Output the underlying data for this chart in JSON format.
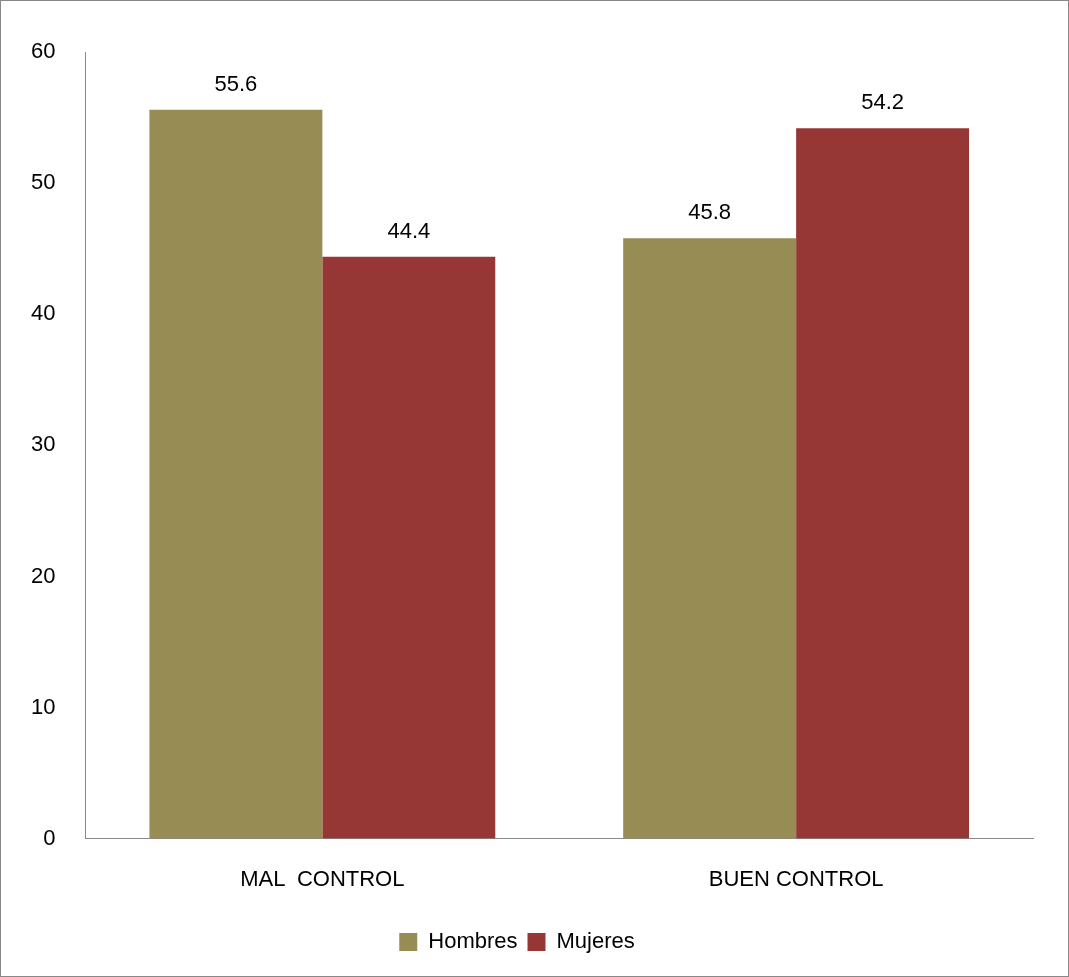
{
  "chart_data": {
    "type": "bar",
    "categories": [
      "MAL  CONTROL",
      "BUEN CONTROL"
    ],
    "series": [
      {
        "name": "Hombres",
        "color": "#978c54",
        "values": [
          55.6,
          45.8
        ]
      },
      {
        "name": "Mujeres",
        "color": "#963735",
        "values": [
          44.4,
          54.2
        ]
      }
    ],
    "ylim": [
      0,
      60
    ],
    "yticks": [
      0,
      10,
      20,
      30,
      40,
      50,
      60
    ],
    "grid": false,
    "legend": "bottom",
    "data_labels": true
  }
}
